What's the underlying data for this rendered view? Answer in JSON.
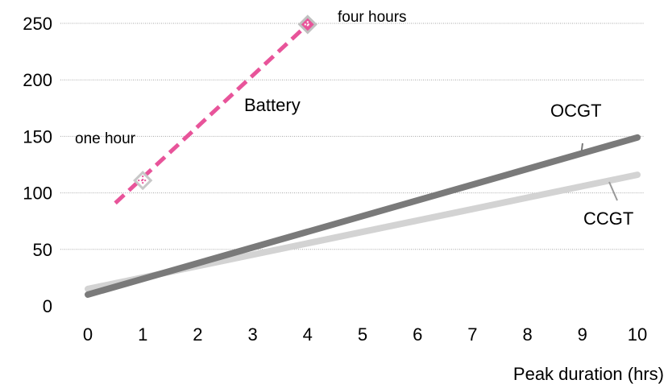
{
  "chart_data": {
    "type": "line",
    "xlabel": "Peak duration (hrs)",
    "ylabel": "",
    "xlim": [
      0,
      10
    ],
    "ylim": [
      0,
      250
    ],
    "x_ticks": [
      "0",
      "1",
      "2",
      "3",
      "4",
      "5",
      "6",
      "7",
      "8",
      "9",
      "10"
    ],
    "y_ticks": [
      "0",
      "50",
      "100",
      "150",
      "200",
      "250"
    ],
    "grid": "horizontal-dotted",
    "series": [
      {
        "name": "OCGT",
        "style": "solid",
        "color": "#7a7a7a",
        "x": [
          0,
          10
        ],
        "y": [
          10,
          149
        ]
      },
      {
        "name": "CCGT",
        "style": "solid",
        "color": "#d3d3d3",
        "x": [
          0,
          10
        ],
        "y": [
          15,
          116
        ]
      },
      {
        "name": "Battery",
        "style": "dashed",
        "color": "#e8549a",
        "x": [
          0.5,
          4
        ],
        "y": [
          91,
          249
        ],
        "markers": [
          {
            "x": 1,
            "y": 111,
            "label": "one hour"
          },
          {
            "x": 4,
            "y": 249,
            "label": "four hours"
          }
        ]
      }
    ]
  }
}
